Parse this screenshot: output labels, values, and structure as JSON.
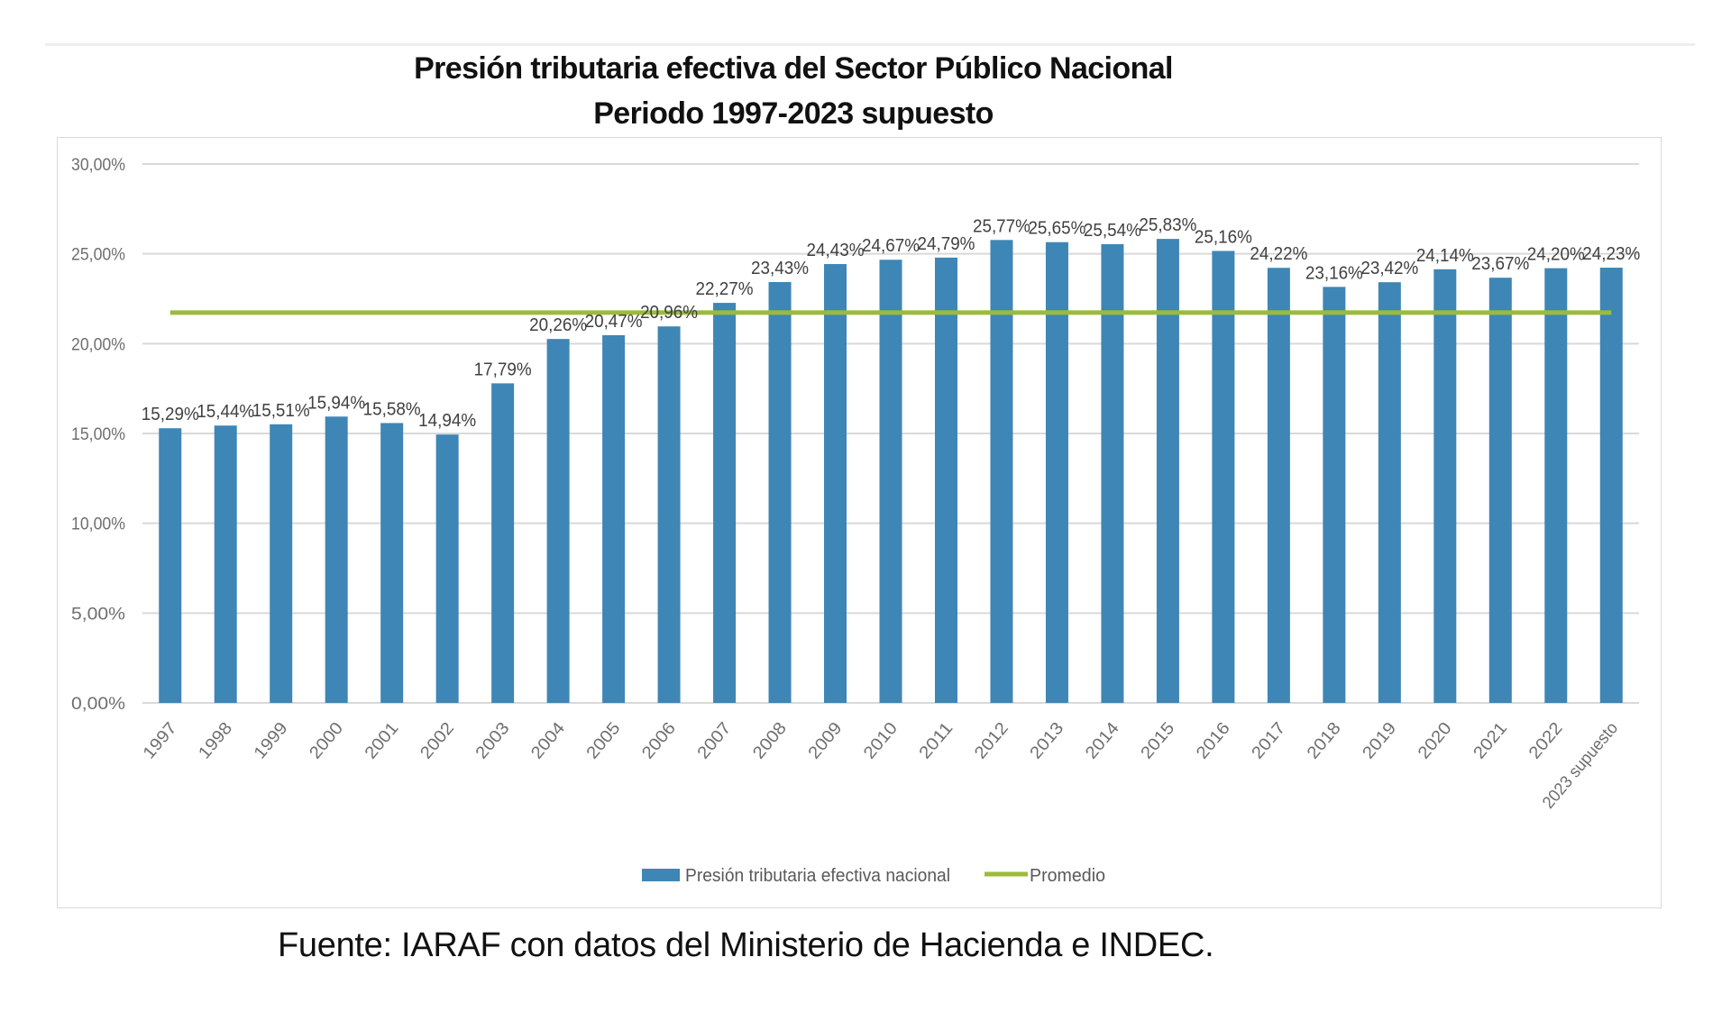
{
  "header": {
    "title_line1": "Presión tributaria efectiva del Sector Público Nacional",
    "title_line2": "Periodo 1997-2023 supuesto"
  },
  "source": "Fuente: IARAF con datos del Ministerio de Hacienda e INDEC.",
  "colors": {
    "bar": "#3E86B5",
    "average_line": "#9BBB3A",
    "grid": "#d9d9d9",
    "axis_text": "#6f6f6f",
    "label_text": "#404040"
  },
  "chart_data": {
    "type": "bar",
    "title": "Presión tributaria efectiva del Sector Público Nacional — Periodo 1997-2023 supuesto",
    "xlabel": "",
    "ylabel": "",
    "ylim": [
      0,
      30
    ],
    "yticks": [
      0,
      5,
      10,
      15,
      20,
      25,
      30
    ],
    "ytick_labels": [
      "0,00%",
      "5,00%",
      "10,00%",
      "15,00%",
      "20,00%",
      "25,00%",
      "30,00%"
    ],
    "grid": true,
    "legend_position": "bottom-center",
    "categories": [
      "1997",
      "1998",
      "1999",
      "2000",
      "2001",
      "2002",
      "2003",
      "2004",
      "2005",
      "2006",
      "2007",
      "2008",
      "2009",
      "2010",
      "2011",
      "2012",
      "2013",
      "2014",
      "2015",
      "2016",
      "2017",
      "2018",
      "2019",
      "2020",
      "2021",
      "2022",
      "2023 supuesto"
    ],
    "series": [
      {
        "name": "Presión tributaria efectiva nacional",
        "type": "bar",
        "values": [
          15.29,
          15.44,
          15.51,
          15.94,
          15.58,
          14.94,
          17.79,
          20.26,
          20.47,
          20.96,
          22.27,
          23.43,
          24.43,
          24.67,
          24.79,
          25.77,
          25.65,
          25.54,
          25.83,
          25.16,
          24.22,
          23.16,
          23.42,
          24.14,
          23.67,
          24.2,
          24.23
        ],
        "data_labels": [
          "15,29%",
          "15,44%",
          "15,51%",
          "15,94%",
          "15,58%",
          "14,94%",
          "17,79%",
          "20,26%",
          "20,47%",
          "20,96%",
          "22,27%",
          "23,43%",
          "24,43%",
          "24,67%",
          "24,79%",
          "25,77%",
          "25,65%",
          "25,54%",
          "25,83%",
          "25,16%",
          "24,22%",
          "23,16%",
          "23,42%",
          "24,14%",
          "23,67%",
          "24,20%",
          "24,23%"
        ]
      },
      {
        "name": "Promedio",
        "type": "line",
        "value": 21.73
      }
    ]
  }
}
